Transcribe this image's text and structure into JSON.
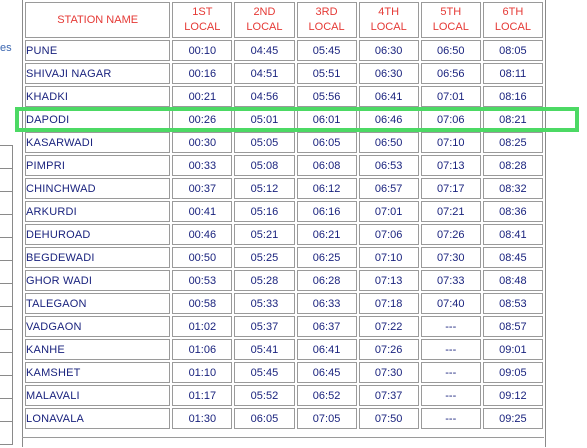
{
  "left_panel": {
    "fragment": "es"
  },
  "timetable": {
    "headers": [
      "STATION NAME",
      "1ST LOCAL",
      "2ND LOCAL",
      "3RD LOCAL",
      "4TH LOCAL",
      "5TH LOCAL",
      "6TH LOCAL"
    ],
    "rows": [
      {
        "station": "PUNE",
        "times": [
          "00:10",
          "04:45",
          "05:45",
          "06:30",
          "06:50",
          "08:05"
        ]
      },
      {
        "station": "SHIVAJI NAGAR",
        "times": [
          "00:16",
          "04:51",
          "05:51",
          "06:30",
          "06:56",
          "08:11"
        ]
      },
      {
        "station": "KHADKI",
        "times": [
          "00:21",
          "04:56",
          "05:56",
          "06:41",
          "07:01",
          "08:16"
        ]
      },
      {
        "station": "DAPODI",
        "times": [
          "00:26",
          "05:01",
          "06:01",
          "06:46",
          "07:06",
          "08:21"
        ]
      },
      {
        "station": "KASARWADI",
        "times": [
          "00:30",
          "05:05",
          "06:05",
          "06:50",
          "07:10",
          "08:25"
        ]
      },
      {
        "station": "PIMPRI",
        "times": [
          "00:33",
          "05:08",
          "06:08",
          "06:53",
          "07:13",
          "08:28"
        ]
      },
      {
        "station": "CHINCHWAD",
        "times": [
          "00:37",
          "05:12",
          "06:12",
          "06:57",
          "07:17",
          "08:32"
        ]
      },
      {
        "station": "ARKURDI",
        "times": [
          "00:41",
          "05:16",
          "06:16",
          "07:01",
          "07:21",
          "08:36"
        ]
      },
      {
        "station": "DEHUROAD",
        "times": [
          "00:46",
          "05:21",
          "06:21",
          "07:06",
          "07:26",
          "08:41"
        ]
      },
      {
        "station": "BEGDEWADI",
        "times": [
          "00:50",
          "05:25",
          "06:25",
          "07:10",
          "07:30",
          "08:45"
        ]
      },
      {
        "station": "GHOR WADI",
        "times": [
          "00:53",
          "05:28",
          "06:28",
          "07:13",
          "07:33",
          "08:48"
        ]
      },
      {
        "station": "TALEGAON",
        "times": [
          "00:58",
          "05:33",
          "06:33",
          "07:18",
          "07:40",
          "08:53"
        ]
      },
      {
        "station": "VADGAON",
        "times": [
          "01:02",
          "05:37",
          "06:37",
          "07:22",
          "---",
          "08:57"
        ]
      },
      {
        "station": "KANHE",
        "times": [
          "01:06",
          "05:41",
          "06:41",
          "07:26",
          "---",
          "09:01"
        ]
      },
      {
        "station": "KAMSHET",
        "times": [
          "01:10",
          "05:45",
          "06:45",
          "07:30",
          "---",
          "09:05"
        ]
      },
      {
        "station": "MALAVALI",
        "times": [
          "01:17",
          "05:52",
          "06:52",
          "07:37",
          "---",
          "09:12"
        ]
      },
      {
        "station": "LONAVALA",
        "times": [
          "01:30",
          "06:05",
          "07:05",
          "07:50",
          "---",
          "09:25"
        ]
      }
    ],
    "highlighted_station": "DAPODI",
    "colors": {
      "header_text": "#e53935",
      "cell_text": "#1a237e",
      "highlight": "#4cd964"
    }
  }
}
